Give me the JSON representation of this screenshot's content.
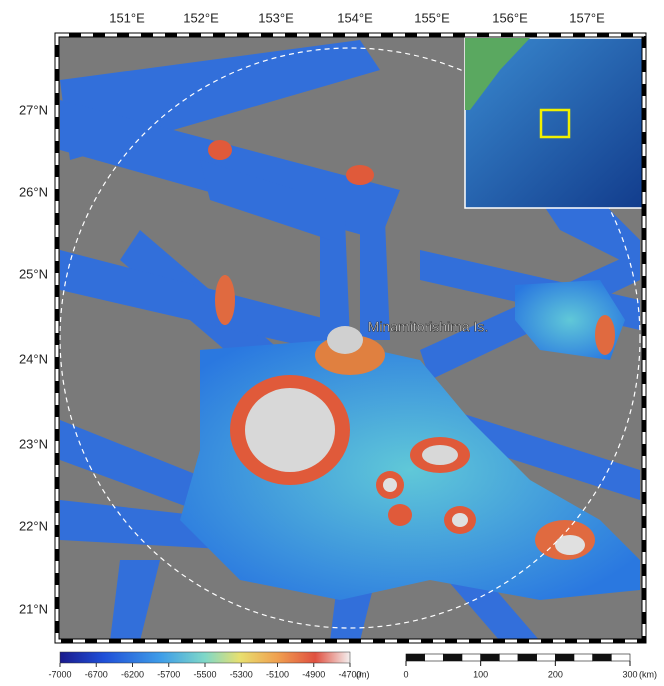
{
  "map": {
    "longitude_labels": [
      "151°E",
      "152°E",
      "153°E",
      "154°E",
      "155°E",
      "156°E",
      "157°E"
    ],
    "latitude_labels": [
      "27°N",
      "26°N",
      "25°N",
      "24°N",
      "23°N",
      "22°N",
      "21°N"
    ],
    "place_label": "Minamitorishima Is.",
    "colorbar": {
      "ticks": [
        -7000,
        -6700,
        -6200,
        -5700,
        -5500,
        -5300,
        -5100,
        -4900,
        -4700
      ],
      "unit": "(m)"
    },
    "scale_bar": {
      "ticks": [
        0,
        100,
        200,
        300
      ],
      "unit": "(km)"
    }
  }
}
